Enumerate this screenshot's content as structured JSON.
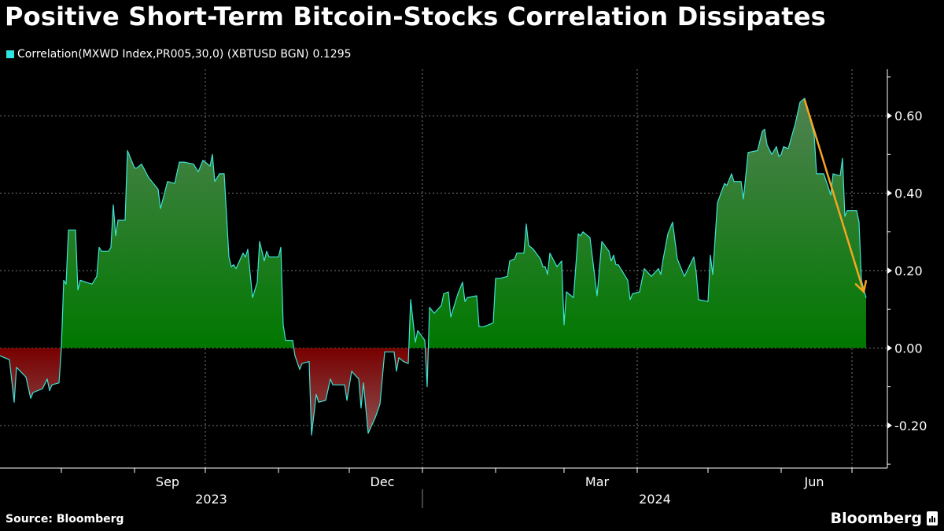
{
  "title": "Positive Short-Term Bitcoin-Stocks Correlation Dissipates",
  "legend": {
    "label": "Correlation(MXWD Index,PR005,30,0) (XBTUSD BGN)",
    "last_value": "0.1295",
    "color": "#2ee6e0"
  },
  "source": "Source: Bloomberg",
  "brand": "Bloomberg",
  "colors": {
    "line": "#3fe3d6",
    "positive_fill_top": "#4f8250",
    "positive_fill_bottom": "#007800",
    "negative_fill_top": "#780000",
    "negative_fill_bottom": "#8c5454",
    "arrow": "#f5a623",
    "grid": "#777777"
  },
  "chart_data": {
    "type": "area",
    "grid": true,
    "legend_position": "top-left",
    "y_axis_side": "right",
    "xlim": [
      "2023-07-06",
      "2024-07-16"
    ],
    "ylim": [
      -0.31,
      0.72
    ],
    "y_ticks": [
      0.6,
      0.4,
      0.2,
      0.0,
      -0.2
    ],
    "y_tick_labels": [
      "0.60",
      "0.40",
      "0.20",
      "0.00",
      "-0.20"
    ],
    "x_tick_labels": [
      {
        "label": "Sep",
        "month": "2023-09"
      },
      {
        "label": "Dec",
        "month": "2023-12"
      },
      {
        "label": "Mar",
        "month": "2024-03"
      },
      {
        "label": "Jun",
        "month": "2024-06"
      }
    ],
    "year_labels": [
      "2023",
      "2024"
    ],
    "series": [
      {
        "name": "Correlation(MXWD Index,PR005,30,0) (XBTUSD BGN)",
        "points": [
          [
            "2023-07-06",
            -0.02
          ],
          [
            "2023-07-10",
            -0.03
          ],
          [
            "2023-07-12",
            -0.14
          ],
          [
            "2023-07-13",
            -0.05
          ],
          [
            "2023-07-17",
            -0.075
          ],
          [
            "2023-07-19",
            -0.13
          ],
          [
            "2023-07-20",
            -0.115
          ],
          [
            "2023-07-24",
            -0.105
          ],
          [
            "2023-07-26",
            -0.08
          ],
          [
            "2023-07-27",
            -0.11
          ],
          [
            "2023-07-28",
            -0.095
          ],
          [
            "2023-07-31",
            -0.09
          ],
          [
            "2023-08-01",
            0.0
          ],
          [
            "2023-08-02",
            0.175
          ],
          [
            "2023-08-03",
            0.165
          ],
          [
            "2023-08-04",
            0.305
          ],
          [
            "2023-08-07",
            0.305
          ],
          [
            "2023-08-08",
            0.15
          ],
          [
            "2023-08-09",
            0.175
          ],
          [
            "2023-08-14",
            0.165
          ],
          [
            "2023-08-16",
            0.185
          ],
          [
            "2023-08-17",
            0.26
          ],
          [
            "2023-08-18",
            0.25
          ],
          [
            "2023-08-21",
            0.25
          ],
          [
            "2023-08-22",
            0.26
          ],
          [
            "2023-08-23",
            0.37
          ],
          [
            "2023-08-24",
            0.29
          ],
          [
            "2023-08-25",
            0.33
          ],
          [
            "2023-08-28",
            0.33
          ],
          [
            "2023-08-29",
            0.51
          ],
          [
            "2023-09-01",
            0.465
          ],
          [
            "2023-09-02",
            0.465
          ],
          [
            "2023-09-04",
            0.475
          ],
          [
            "2023-09-07",
            0.44
          ],
          [
            "2023-09-11",
            0.41
          ],
          [
            "2023-09-12",
            0.36
          ],
          [
            "2023-09-15",
            0.43
          ],
          [
            "2023-09-18",
            0.425
          ],
          [
            "2023-09-20",
            0.48
          ],
          [
            "2023-09-22",
            0.48
          ],
          [
            "2023-09-26",
            0.475
          ],
          [
            "2023-09-28",
            0.455
          ],
          [
            "2023-09-30",
            0.485
          ],
          [
            "2023-10-02",
            0.475
          ],
          [
            "2023-10-03",
            0.47
          ],
          [
            "2023-10-04",
            0.5
          ],
          [
            "2023-10-05",
            0.43
          ],
          [
            "2023-10-07",
            0.45
          ],
          [
            "2023-10-09",
            0.45
          ],
          [
            "2023-10-11",
            0.235
          ],
          [
            "2023-10-12",
            0.21
          ],
          [
            "2023-10-13",
            0.215
          ],
          [
            "2023-10-14",
            0.205
          ],
          [
            "2023-10-17",
            0.245
          ],
          [
            "2023-10-18",
            0.235
          ],
          [
            "2023-10-19",
            0.255
          ],
          [
            "2023-10-21",
            0.13
          ],
          [
            "2023-10-23",
            0.17
          ],
          [
            "2023-10-24",
            0.275
          ],
          [
            "2023-10-26",
            0.225
          ],
          [
            "2023-10-27",
            0.25
          ],
          [
            "2023-10-28",
            0.235
          ],
          [
            "2023-11-01",
            0.235
          ],
          [
            "2023-11-02",
            0.26
          ],
          [
            "2023-11-03",
            0.06
          ],
          [
            "2023-11-04",
            0.02
          ],
          [
            "2023-11-07",
            0.02
          ],
          [
            "2023-11-08",
            -0.02
          ],
          [
            "2023-11-10",
            -0.055
          ],
          [
            "2023-11-11",
            -0.04
          ],
          [
            "2023-11-14",
            -0.035
          ],
          [
            "2023-11-15",
            -0.225
          ],
          [
            "2023-11-17",
            -0.12
          ],
          [
            "2023-11-18",
            -0.14
          ],
          [
            "2023-11-21",
            -0.135
          ],
          [
            "2023-11-23",
            -0.08
          ],
          [
            "2023-11-24",
            -0.095
          ],
          [
            "2023-11-29",
            -0.095
          ],
          [
            "2023-11-30",
            -0.135
          ],
          [
            "2023-12-02",
            -0.06
          ],
          [
            "2023-12-05",
            -0.08
          ],
          [
            "2023-12-06",
            -0.155
          ],
          [
            "2023-12-07",
            -0.09
          ],
          [
            "2023-12-09",
            -0.22
          ],
          [
            "2023-12-12",
            -0.18
          ],
          [
            "2023-12-14",
            -0.145
          ],
          [
            "2023-12-16",
            -0.01
          ],
          [
            "2023-12-20",
            -0.01
          ],
          [
            "2023-12-21",
            -0.06
          ],
          [
            "2023-12-22",
            -0.025
          ],
          [
            "2023-12-24",
            -0.035
          ],
          [
            "2023-12-26",
            -0.04
          ],
          [
            "2023-12-27",
            0.125
          ],
          [
            "2023-12-29",
            0.015
          ],
          [
            "2023-12-30",
            0.045
          ],
          [
            "2024-01-02",
            0.02
          ],
          [
            "2024-01-03",
            -0.1
          ],
          [
            "2024-01-04",
            0.105
          ],
          [
            "2024-01-06",
            0.09
          ],
          [
            "2024-01-09",
            0.11
          ],
          [
            "2024-01-10",
            0.14
          ],
          [
            "2024-01-12",
            0.145
          ],
          [
            "2024-01-13",
            0.08
          ],
          [
            "2024-01-16",
            0.14
          ],
          [
            "2024-01-18",
            0.17
          ],
          [
            "2024-01-19",
            0.12
          ],
          [
            "2024-01-20",
            0.13
          ],
          [
            "2024-01-24",
            0.135
          ],
          [
            "2024-01-25",
            0.055
          ],
          [
            "2024-01-27",
            0.055
          ],
          [
            "2024-01-31",
            0.065
          ],
          [
            "2024-02-01",
            0.18
          ],
          [
            "2024-02-03",
            0.18
          ],
          [
            "2024-02-06",
            0.185
          ],
          [
            "2024-02-07",
            0.225
          ],
          [
            "2024-02-09",
            0.23
          ],
          [
            "2024-02-10",
            0.245
          ],
          [
            "2024-02-13",
            0.245
          ],
          [
            "2024-02-14",
            0.32
          ],
          [
            "2024-02-15",
            0.265
          ],
          [
            "2024-02-17",
            0.255
          ],
          [
            "2024-02-20",
            0.23
          ],
          [
            "2024-02-21",
            0.21
          ],
          [
            "2024-02-22",
            0.21
          ],
          [
            "2024-02-23",
            0.19
          ],
          [
            "2024-02-24",
            0.245
          ],
          [
            "2024-02-27",
            0.21
          ],
          [
            "2024-02-29",
            0.225
          ],
          [
            "2024-03-01",
            0.06
          ],
          [
            "2024-03-02",
            0.145
          ],
          [
            "2024-03-05",
            0.13
          ],
          [
            "2024-03-07",
            0.295
          ],
          [
            "2024-03-08",
            0.29
          ],
          [
            "2024-03-09",
            0.3
          ],
          [
            "2024-03-12",
            0.285
          ],
          [
            "2024-03-15",
            0.135
          ],
          [
            "2024-03-17",
            0.275
          ],
          [
            "2024-03-20",
            0.25
          ],
          [
            "2024-03-21",
            0.225
          ],
          [
            "2024-03-22",
            0.24
          ],
          [
            "2024-03-23",
            0.215
          ],
          [
            "2024-03-24",
            0.215
          ],
          [
            "2024-03-28",
            0.175
          ],
          [
            "2024-03-29",
            0.125
          ],
          [
            "2024-03-30",
            0.14
          ],
          [
            "2024-04-02",
            0.145
          ],
          [
            "2024-04-04",
            0.205
          ],
          [
            "2024-04-07",
            0.185
          ],
          [
            "2024-04-10",
            0.205
          ],
          [
            "2024-04-11",
            0.19
          ],
          [
            "2024-04-12",
            0.23
          ],
          [
            "2024-04-14",
            0.295
          ],
          [
            "2024-04-16",
            0.325
          ],
          [
            "2024-04-18",
            0.23
          ],
          [
            "2024-04-21",
            0.185
          ],
          [
            "2024-04-25",
            0.235
          ],
          [
            "2024-04-26",
            0.195
          ],
          [
            "2024-04-27",
            0.125
          ],
          [
            "2024-05-01",
            0.12
          ],
          [
            "2024-05-02",
            0.24
          ],
          [
            "2024-05-03",
            0.19
          ],
          [
            "2024-05-05",
            0.375
          ],
          [
            "2024-05-08",
            0.425
          ],
          [
            "2024-05-09",
            0.42
          ],
          [
            "2024-05-11",
            0.45
          ],
          [
            "2024-05-12",
            0.43
          ],
          [
            "2024-05-15",
            0.43
          ],
          [
            "2024-05-16",
            0.385
          ],
          [
            "2024-05-18",
            0.505
          ],
          [
            "2024-05-22",
            0.51
          ],
          [
            "2024-05-24",
            0.56
          ],
          [
            "2024-05-25",
            0.565
          ],
          [
            "2024-05-26",
            0.525
          ],
          [
            "2024-05-28",
            0.5
          ],
          [
            "2024-05-30",
            0.52
          ],
          [
            "2024-05-31",
            0.495
          ],
          [
            "2024-06-01",
            0.5
          ],
          [
            "2024-06-02",
            0.52
          ],
          [
            "2024-06-04",
            0.515
          ],
          [
            "2024-06-07",
            0.58
          ],
          [
            "2024-06-09",
            0.635
          ],
          [
            "2024-06-10",
            0.64
          ],
          [
            "2024-06-11",
            0.645
          ],
          [
            "2024-06-15",
            0.55
          ],
          [
            "2024-06-16",
            0.45
          ],
          [
            "2024-06-19",
            0.45
          ],
          [
            "2024-06-21",
            0.415
          ],
          [
            "2024-06-22",
            0.395
          ],
          [
            "2024-06-23",
            0.45
          ],
          [
            "2024-06-26",
            0.445
          ],
          [
            "2024-06-27",
            0.49
          ],
          [
            "2024-06-28",
            0.34
          ],
          [
            "2024-06-29",
            0.355
          ],
          [
            "2024-07-03",
            0.355
          ],
          [
            "2024-07-04",
            0.325
          ],
          [
            "2024-07-05",
            0.175
          ],
          [
            "2024-07-07",
            0.1295
          ]
        ]
      }
    ],
    "annotations": [
      {
        "type": "arrow",
        "from": [
          "2024-06-11",
          0.64
        ],
        "to": [
          "2024-07-06",
          0.145
        ],
        "color": "#f5a623"
      }
    ]
  }
}
